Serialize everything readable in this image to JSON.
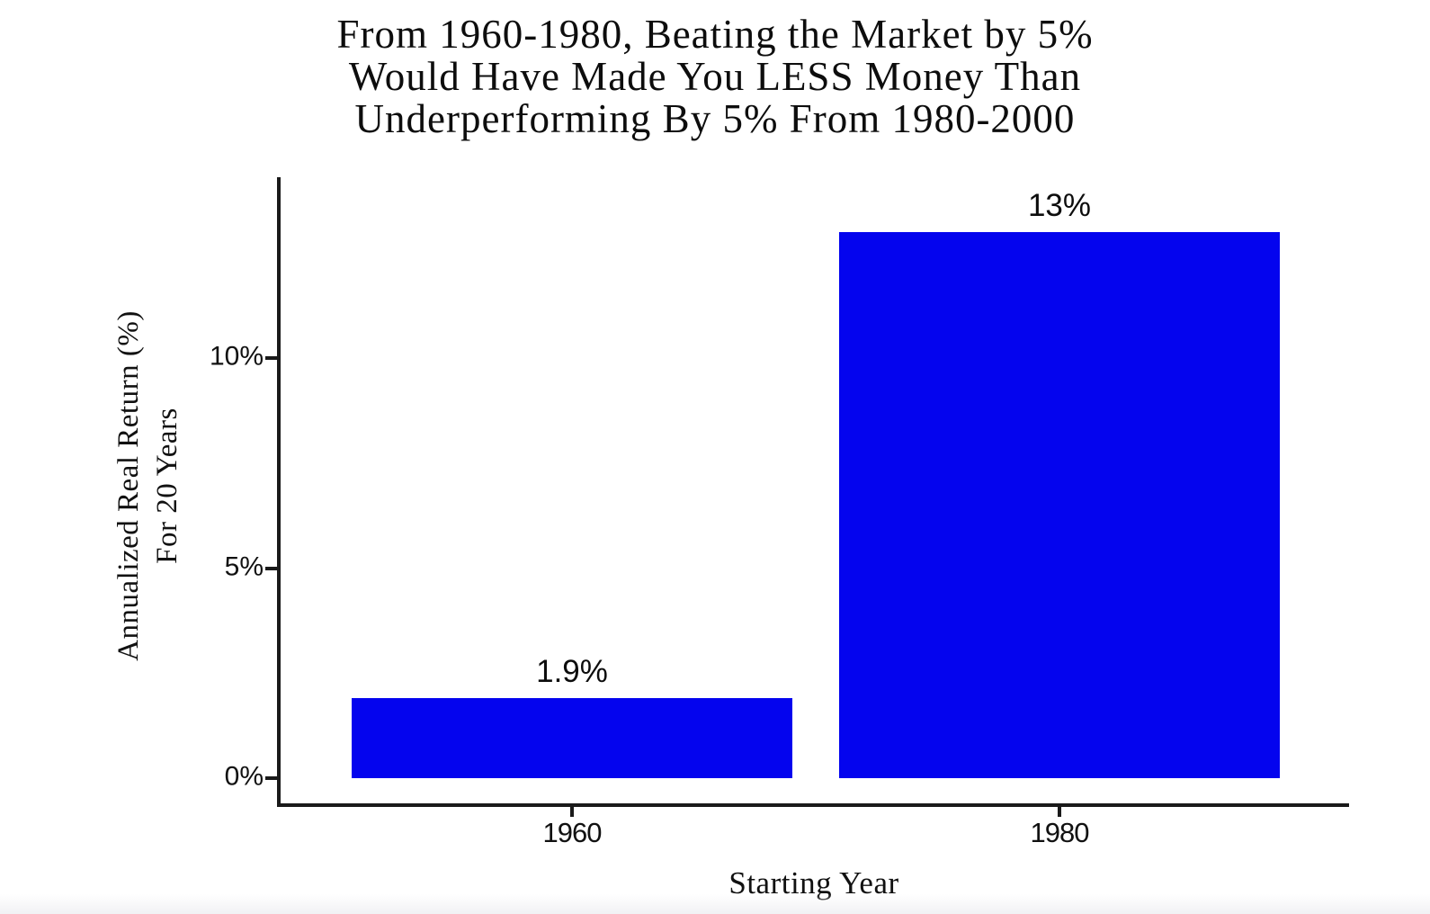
{
  "header": {
    "title_lines": [
      "From 1960-1980, Beating the Market by 5%",
      "Would Have Made You LESS Money Than",
      "Underperforming By 5% From 1980-2000"
    ]
  },
  "chart_data": {
    "type": "bar",
    "title": "From 1960-1980, Beating the Market by 5% Would Have Made You LESS Money Than Underperforming By 5% From 1980-2000",
    "categories": [
      "1960",
      "1980"
    ],
    "values": [
      1.9,
      13
    ],
    "bar_labels": [
      "1.9%",
      "13%"
    ],
    "xlabel": "Starting Year",
    "ylabel_line1": "Annualized Real Return (%)",
    "ylabel_line2": "For 20 Years",
    "yticks": [
      {
        "value": 0,
        "label": "0%"
      },
      {
        "value": 5,
        "label": "5%"
      },
      {
        "value": 10,
        "label": "10%"
      }
    ],
    "ylim": [
      0,
      14.9
    ],
    "grid": false,
    "legend_position": "none",
    "bar_color": "#0404EE",
    "axis_color": "#1a1a1a",
    "text_color": "#0d0d0d",
    "background_color": "#ffffff"
  }
}
